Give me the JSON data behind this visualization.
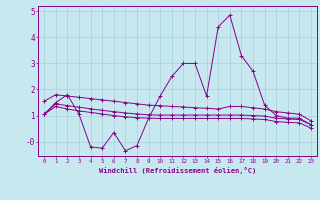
{
  "xlabel": "Windchill (Refroidissement éolien,°C)",
  "x": [
    0,
    1,
    2,
    3,
    4,
    5,
    6,
    7,
    8,
    9,
    10,
    11,
    12,
    13,
    14,
    15,
    16,
    17,
    18,
    19,
    20,
    21,
    22,
    23
  ],
  "line_wiggly": [
    1.05,
    1.5,
    1.8,
    1.05,
    -0.2,
    -0.25,
    0.35,
    -0.35,
    -0.15,
    0.9,
    1.75,
    2.5,
    3.0,
    3.0,
    1.75,
    4.4,
    4.85,
    3.3,
    2.7,
    1.4,
    1.0,
    0.9,
    0.9,
    0.65
  ],
  "line_top": [
    1.55,
    1.8,
    1.75,
    1.7,
    1.65,
    1.6,
    1.55,
    1.5,
    1.45,
    1.4,
    1.38,
    1.35,
    1.33,
    1.3,
    1.28,
    1.25,
    1.35,
    1.35,
    1.3,
    1.25,
    1.15,
    1.1,
    1.05,
    0.8
  ],
  "line_mid": [
    1.05,
    1.45,
    1.38,
    1.32,
    1.26,
    1.2,
    1.15,
    1.1,
    1.06,
    1.03,
    1.02,
    1.02,
    1.02,
    1.02,
    1.02,
    1.02,
    1.02,
    1.02,
    1.0,
    0.98,
    0.9,
    0.87,
    0.85,
    0.65
  ],
  "line_low": [
    1.05,
    1.35,
    1.25,
    1.18,
    1.12,
    1.06,
    1.0,
    0.95,
    0.92,
    0.9,
    0.89,
    0.89,
    0.89,
    0.89,
    0.89,
    0.89,
    0.89,
    0.89,
    0.87,
    0.85,
    0.77,
    0.74,
    0.72,
    0.52
  ],
  "bg_color": "#c8e8f0",
  "grid_color": "#aad4e0",
  "line_color": "#880088",
  "ylim_min": -0.55,
  "ylim_max": 5.2,
  "xlim_min": -0.5,
  "xlim_max": 23.5
}
